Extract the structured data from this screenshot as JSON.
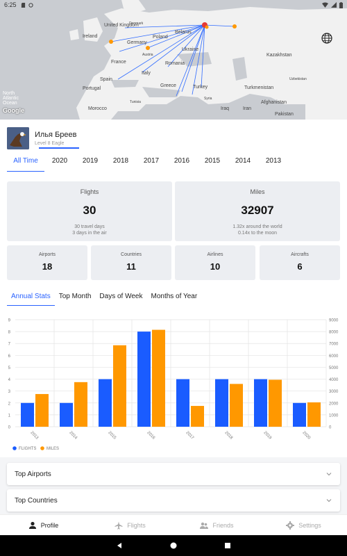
{
  "status_bar": {
    "time": "6:25"
  },
  "map": {
    "labels": [
      {
        "text": "United Kingdom",
        "name": "map-label-uk"
      },
      {
        "text": "Ireland",
        "name": "map-label-ireland"
      },
      {
        "text": "Denmark",
        "name": "map-label-denmark"
      },
      {
        "text": "Belarus",
        "name": "map-label-belarus"
      },
      {
        "text": "Poland",
        "name": "map-label-poland"
      },
      {
        "text": "Germany",
        "name": "map-label-germany"
      },
      {
        "text": "France",
        "name": "map-label-france"
      },
      {
        "text": "Austria",
        "name": "map-label-austria"
      },
      {
        "text": "Ukraine",
        "name": "map-label-ukraine"
      },
      {
        "text": "Kazakhstan",
        "name": "map-label-kazakhstan"
      },
      {
        "text": "Romania",
        "name": "map-label-romania"
      },
      {
        "text": "Uzbekistan",
        "name": "map-label-uzbekistan"
      },
      {
        "text": "Italy",
        "name": "map-label-italy"
      },
      {
        "text": "Spain",
        "name": "map-label-spain"
      },
      {
        "text": "Portugal",
        "name": "map-label-portugal"
      },
      {
        "text": "Greece",
        "name": "map-label-greece"
      },
      {
        "text": "Turkey",
        "name": "map-label-turkey"
      },
      {
        "text": "Turkmenistan",
        "name": "map-label-turkmenistan"
      },
      {
        "text": "Tunisia",
        "name": "map-label-tunisia"
      },
      {
        "text": "Syria",
        "name": "map-label-syria"
      },
      {
        "text": "North Atlantic Ocean",
        "name": "map-label-atlantic"
      },
      {
        "text": "Morocco",
        "name": "map-label-morocco"
      },
      {
        "text": "Iraq",
        "name": "map-label-iraq"
      },
      {
        "text": "Iran",
        "name": "map-label-iran"
      },
      {
        "text": "Afghanistan",
        "name": "map-label-afghanistan"
      },
      {
        "text": "Pakistan",
        "name": "map-label-pakistan"
      }
    ],
    "attribution": "Google"
  },
  "profile": {
    "name": "Илья Бреев",
    "level": "Level 8 Eagle"
  },
  "year_tabs": [
    "All Time",
    "2020",
    "2019",
    "2018",
    "2017",
    "2016",
    "2015",
    "2014",
    "2013"
  ],
  "cards": {
    "flights": {
      "title": "Flights",
      "value": "30",
      "sub1": "30 travel days",
      "sub2": "3 days in the air"
    },
    "miles": {
      "title": "Miles",
      "value": "32907",
      "sub1": "1.32x around the world",
      "sub2": "0.14x to the moon"
    },
    "airports": {
      "title": "Airports",
      "value": "18"
    },
    "countries": {
      "title": "Countries",
      "value": "11"
    },
    "airlines": {
      "title": "Airlines",
      "value": "10"
    },
    "aircrafts": {
      "title": "Aircrafts",
      "value": "6"
    }
  },
  "stat_tabs": [
    "Annual Stats",
    "Top Month",
    "Days of Week",
    "Months of Year"
  ],
  "chart_data": {
    "type": "bar",
    "categories": [
      "2013",
      "2014",
      "2015",
      "2016",
      "2017",
      "2018",
      "2019",
      "2020"
    ],
    "series": [
      {
        "name": "FLIGHTS",
        "values": [
          2,
          2,
          4,
          8,
          4,
          4,
          4,
          2
        ],
        "color": "#1a5cff",
        "axis": "left"
      },
      {
        "name": "MILES",
        "values": [
          2750,
          3750,
          6850,
          8150,
          1750,
          3600,
          3950,
          2050
        ],
        "color": "#ff9800",
        "axis": "right"
      }
    ],
    "ylim_left": [
      0,
      9
    ],
    "ylim_right": [
      0,
      9000
    ],
    "yticks_left": [
      "0",
      "1",
      "2",
      "3",
      "4",
      "5",
      "6",
      "7",
      "8",
      "9"
    ],
    "yticks_right": [
      "0",
      "1000",
      "2000",
      "3000",
      "4000",
      "5000",
      "6000",
      "7000",
      "8000",
      "9000"
    ],
    "legend": "bottom-left",
    "grid": true
  },
  "accordions": {
    "top_airports": "Top Airports",
    "top_countries": "Top Countries"
  },
  "bottom_nav": {
    "profile": "Profile",
    "flights": "Flights",
    "friends": "Friends",
    "settings": "Settings"
  }
}
